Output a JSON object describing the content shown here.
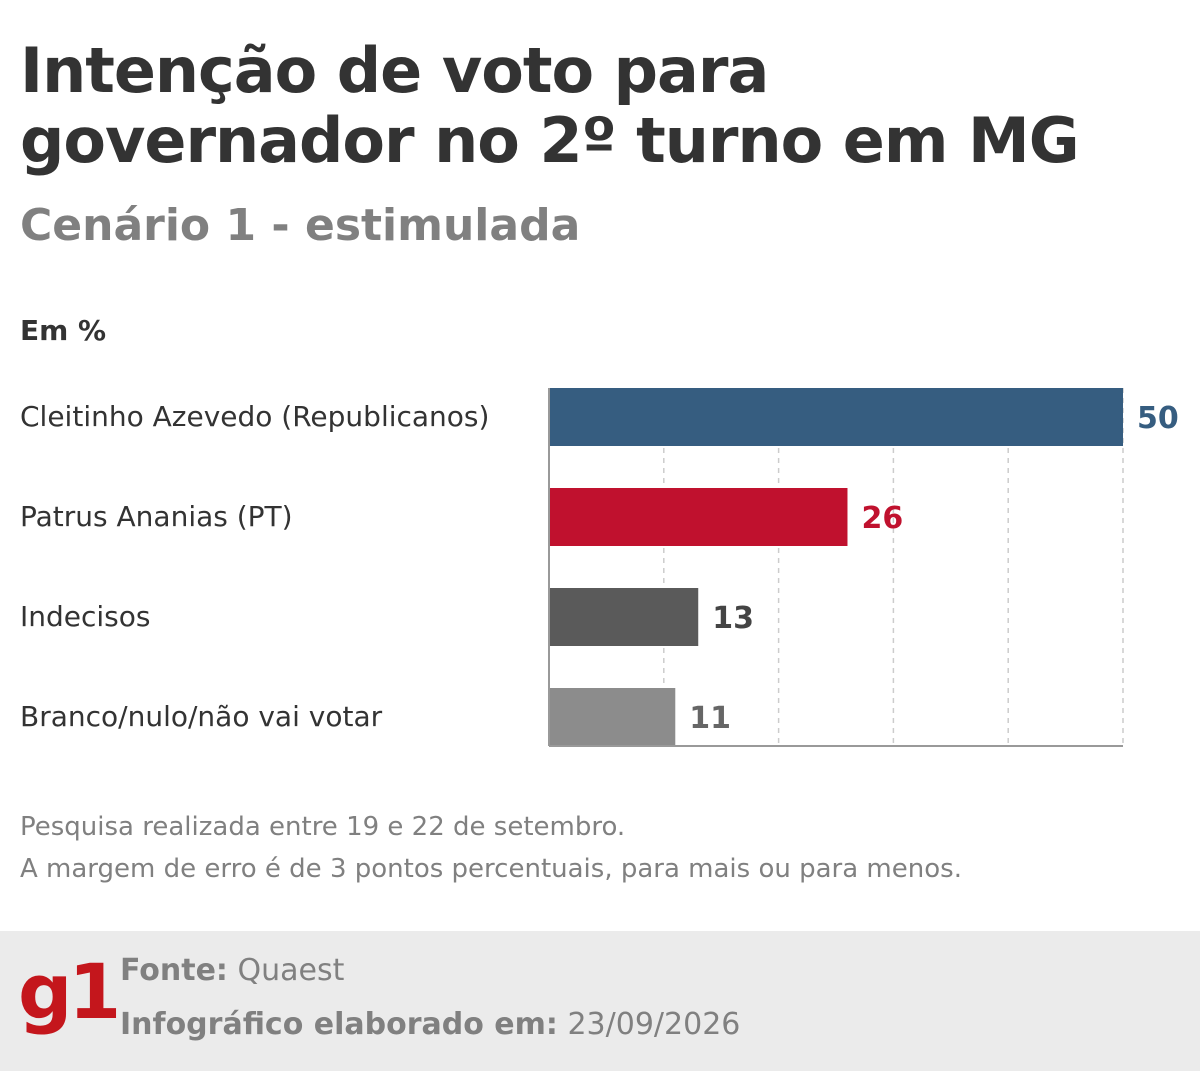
{
  "header": {
    "title_line1": "Intenção de voto para",
    "title_line2": "governador no 2º turno em MG",
    "subtitle": "Cenário 1 - estimulada",
    "unit": "Em %"
  },
  "chart_data": {
    "type": "bar",
    "orientation": "horizontal",
    "categories": [
      "Cleitinho Azevedo (Republicanos)",
      "Patrus Ananias (PT)",
      "Indecisos",
      "Branco/nulo/não vai votar"
    ],
    "values": [
      50,
      26,
      13,
      11
    ],
    "colors": [
      "#365d80",
      "#c0112e",
      "#5a5a5a",
      "#8c8c8c"
    ],
    "label_colors": [
      "#365d80",
      "#c0112e",
      "#444444",
      "#666666"
    ],
    "xlim": [
      0,
      50
    ],
    "grid": true
  },
  "notes": {
    "line1": "Pesquisa realizada entre 19 e 22 de setembro.",
    "line2": "A margem de erro é de 3 pontos percentuais, para mais ou para menos."
  },
  "footer": {
    "logo": "g1",
    "source_label": "Fonte:",
    "source_value": "Quaest",
    "date_label": "Infográfico elaborado em:",
    "date_value": "23/09/2026"
  }
}
